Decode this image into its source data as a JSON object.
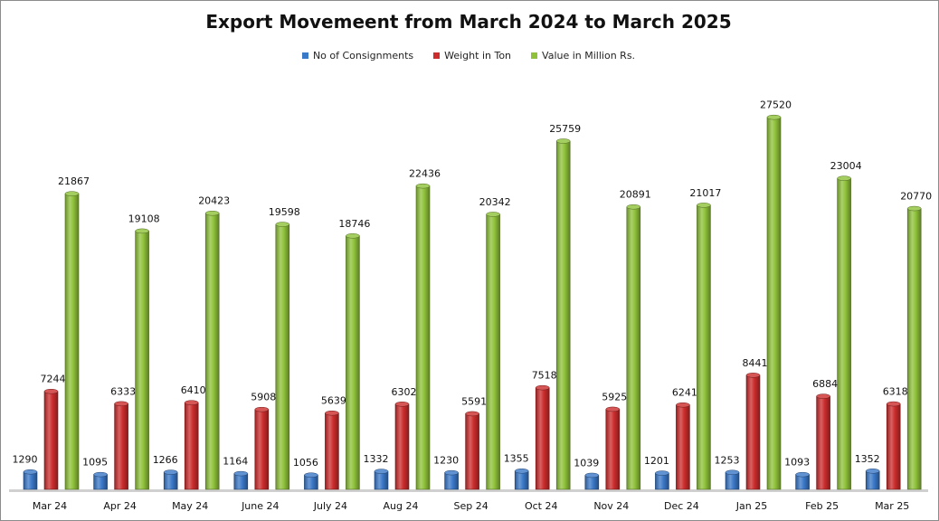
{
  "chart_data": {
    "type": "bar",
    "title": "Export Movemeent from March 2024 to March 2025",
    "categories": [
      "Mar 24",
      "Apr 24",
      "May 24",
      "June 24",
      "July 24",
      "Aug 24",
      "Sep 24",
      "Oct 24",
      "Nov 24",
      "Dec 24",
      "Jan 25",
      "Feb 25",
      "Mar 25"
    ],
    "series": [
      {
        "name": "No of Consignments",
        "color": "#3a78c8",
        "values": [
          1290,
          1095,
          1266,
          1164,
          1056,
          1332,
          1230,
          1355,
          1039,
          1201,
          1253,
          1093,
          1352
        ]
      },
      {
        "name": "Weight in Ton",
        "color": "#cc2c2c",
        "values": [
          7244,
          6333,
          6410,
          5908,
          5639,
          6302,
          5591,
          7518,
          5925,
          6241,
          8441,
          6884,
          6318
        ]
      },
      {
        "name": "Value in Million Rs.",
        "color": "#8fc23a",
        "values": [
          21867,
          19108,
          20423,
          19598,
          18746,
          22436,
          20342,
          25759,
          20891,
          21017,
          27520,
          23004,
          20770
        ]
      }
    ],
    "xlabel": "",
    "ylabel": "",
    "ylim": [
      0,
      28500
    ],
    "grid": false,
    "legend_position": "top-center"
  }
}
